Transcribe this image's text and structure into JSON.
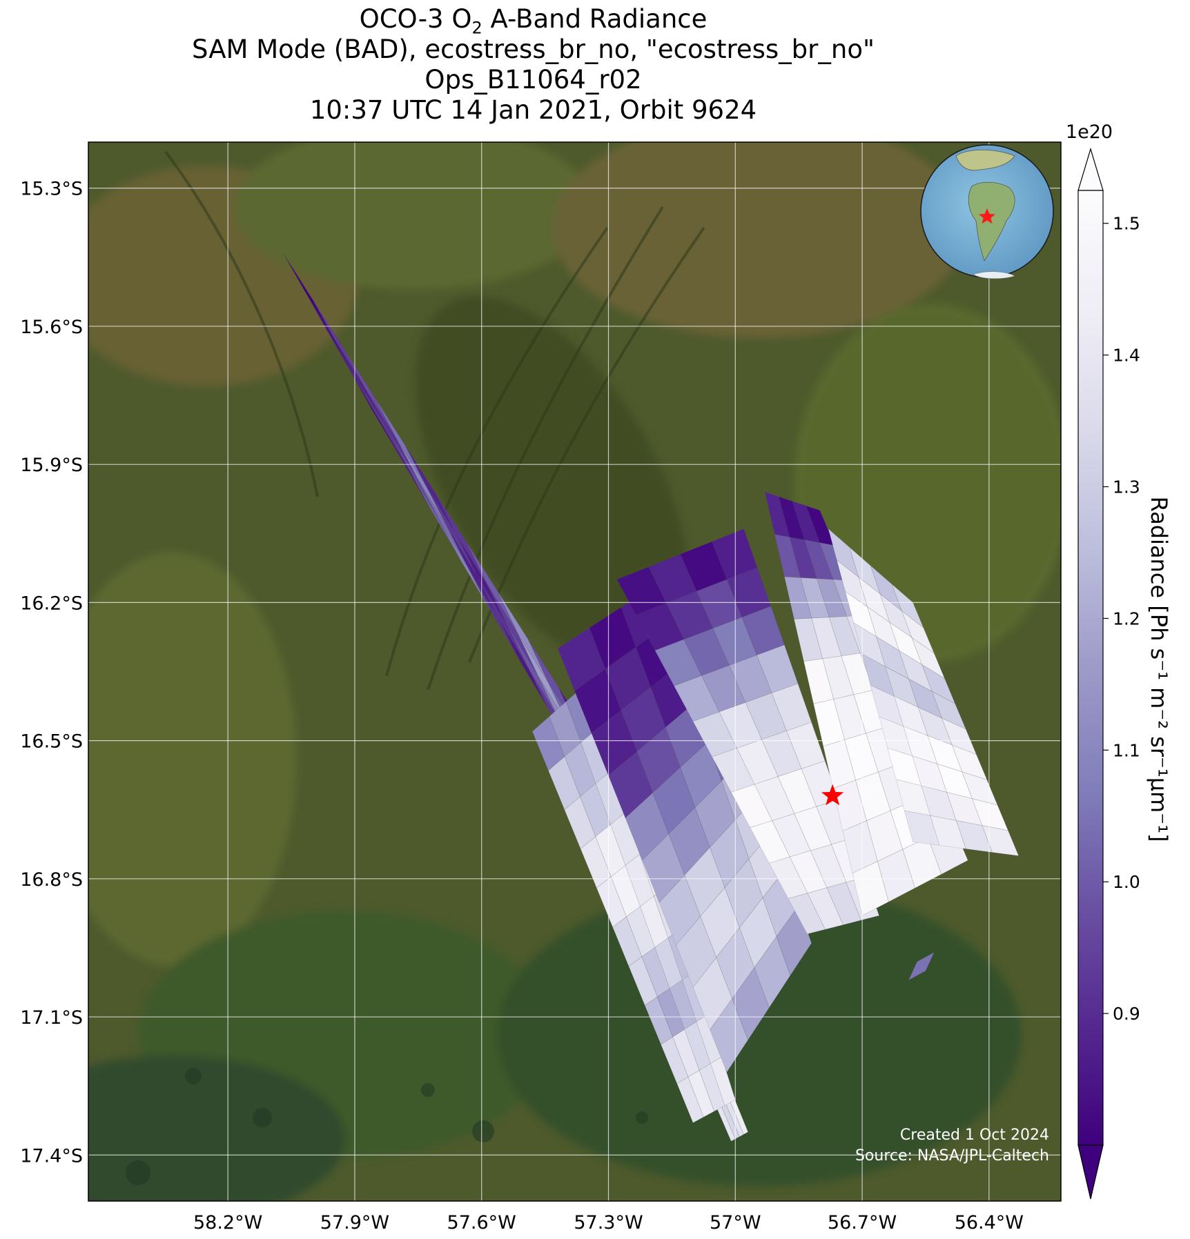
{
  "title": {
    "line1_prefix": "OCO-3 O",
    "line1_sub": "2",
    "line1_suffix": " A-Band Radiance",
    "line2": "SAM Mode (BAD), ecostress_br_no, \"ecostress_br_no\"",
    "line3": "Ops_B11064_r02",
    "line4": "10:37 UTC 14 Jan 2021, Orbit 9624"
  },
  "map": {
    "lon_range": [
      -58.53,
      -56.23
    ],
    "lat_range": [
      -17.5,
      -15.2
    ],
    "lon_ticks": [
      {
        "value": -58.2,
        "label": "58.2°W"
      },
      {
        "value": -57.9,
        "label": "57.9°W"
      },
      {
        "value": -57.6,
        "label": "57.6°W"
      },
      {
        "value": -57.3,
        "label": "57.3°W"
      },
      {
        "value": -57.0,
        "label": "57°W"
      },
      {
        "value": -56.7,
        "label": "56.7°W"
      },
      {
        "value": -56.4,
        "label": "56.4°W"
      }
    ],
    "lat_ticks": [
      {
        "value": -15.3,
        "label": "15.3°S"
      },
      {
        "value": -15.6,
        "label": "15.6°S"
      },
      {
        "value": -15.9,
        "label": "15.9°S"
      },
      {
        "value": -16.2,
        "label": "16.2°S"
      },
      {
        "value": -16.5,
        "label": "16.5°S"
      },
      {
        "value": -16.8,
        "label": "16.8°S"
      },
      {
        "value": -17.1,
        "label": "17.1°S"
      },
      {
        "value": -17.4,
        "label": "17.4°S"
      }
    ],
    "target_marker": {
      "lon": -56.77,
      "lat": -16.62,
      "color": "#ff0000"
    },
    "credits": {
      "line1": "Created 1 Oct 2024",
      "line2": "Source: NASA/JPL-Caltech"
    }
  },
  "colorbar": {
    "label": "Radiance [Ph s⁻¹ m⁻² sr⁻¹μm⁻¹]",
    "exponent": "1e20",
    "range": [
      0.8,
      1.525
    ],
    "ticks": [
      {
        "value": 0.9,
        "label": "0.9"
      },
      {
        "value": 1.0,
        "label": "1.0"
      },
      {
        "value": 1.1,
        "label": "1.1"
      },
      {
        "value": 1.2,
        "label": "1.2"
      },
      {
        "value": 1.3,
        "label": "1.3"
      },
      {
        "value": 1.4,
        "label": "1.4"
      },
      {
        "value": 1.5,
        "label": "1.5"
      }
    ],
    "colormap": [
      "#3f007d",
      "#54278f",
      "#6a51a3",
      "#807dba",
      "#9e9ac8",
      "#bcbddc",
      "#dadaeb",
      "#efedf5",
      "#fcfbfd"
    ]
  },
  "chart_data": {
    "type": "heatmap",
    "title": "OCO-3 O2 A-Band Radiance",
    "xlabel": "",
    "ylabel": "",
    "value_label": "Radiance [Ph s⁻¹ m⁻² sr⁻¹μm⁻¹]",
    "value_scale": "1e20",
    "swaths": [
      {
        "corners_lonlat": [
          [
            -58.07,
            -15.44
          ],
          [
            -57.86,
            -15.78
          ],
          [
            -57.02,
            -17.09
          ],
          [
            -57.2,
            -16.7
          ]
        ],
        "values": [
          0.84,
          0.9,
          0.96,
          1.06,
          0.92,
          0.88,
          0.98,
          1.12,
          1.0,
          0.9,
          0.86,
          0.94
        ]
      },
      {
        "corners_lonlat": [
          [
            -57.41,
            -16.52
          ],
          [
            -57.36,
            -16.47
          ],
          [
            -56.97,
            -17.35
          ],
          [
            -57.01,
            -17.37
          ]
        ],
        "values": [
          1.42,
          1.45,
          1.4,
          1.47,
          1.5,
          1.46,
          1.48,
          1.44,
          1.41,
          1.38
        ]
      },
      {
        "corners_lonlat": [
          [
            -57.48,
            -16.48
          ],
          [
            -57.32,
            -16.35
          ],
          [
            -57.0,
            -17.28
          ],
          [
            -57.1,
            -17.33
          ]
        ],
        "values": [
          1.15,
          1.25,
          1.32,
          1.4,
          1.44,
          1.38,
          1.3,
          1.24,
          1.36,
          1.42
        ]
      },
      {
        "corners_lonlat": [
          [
            -57.42,
            -16.3
          ],
          [
            -57.12,
            -16.12
          ],
          [
            -56.82,
            -16.94
          ],
          [
            -57.02,
            -17.22
          ]
        ],
        "values": [
          0.86,
          0.84,
          0.9,
          0.98,
          1.08,
          1.18,
          1.28,
          1.34,
          1.3,
          1.22
        ]
      },
      {
        "corners_lonlat": [
          [
            -57.28,
            -16.15
          ],
          [
            -56.98,
            -16.04
          ],
          [
            -56.66,
            -16.88
          ],
          [
            -56.83,
            -16.92
          ]
        ],
        "values": [
          0.86,
          0.92,
          1.05,
          1.2,
          1.34,
          1.42,
          1.46,
          1.48,
          1.44,
          1.38
        ]
      },
      {
        "corners_lonlat": [
          [
            -56.93,
            -15.96
          ],
          [
            -56.8,
            -16.0
          ],
          [
            -56.45,
            -16.76
          ],
          [
            -56.7,
            -16.88
          ]
        ],
        "values": [
          0.85,
          0.98,
          1.2,
          1.38,
          1.46,
          1.5,
          1.5,
          1.49,
          1.48,
          1.46
        ]
      },
      {
        "corners_lonlat": [
          [
            -56.78,
            -16.04
          ],
          [
            -56.58,
            -16.2
          ],
          [
            -56.33,
            -16.75
          ],
          [
            -56.58,
            -16.72
          ]
        ],
        "values": [
          1.3,
          1.44,
          1.47,
          1.35,
          1.28,
          1.42,
          1.5,
          1.5,
          1.46,
          1.4
        ]
      }
    ]
  }
}
